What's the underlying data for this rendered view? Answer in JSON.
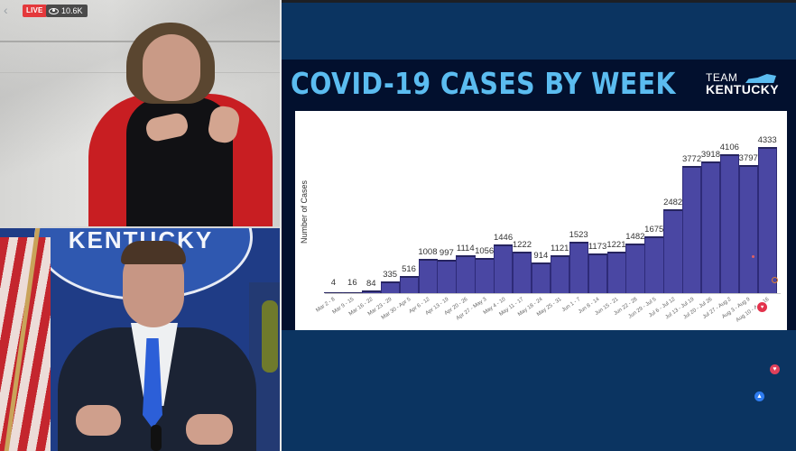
{
  "stream": {
    "live_label": "LIVE",
    "viewers": "10.6K",
    "icons": {
      "viewers": "eye-icon",
      "back": "chevron-left-icon"
    }
  },
  "video_tiles": {
    "interpreter": {
      "description": "ASL interpreter in red cardigan against marble wall"
    },
    "governor": {
      "seal_text": "KENTUCKY",
      "description": "Speaker at podium in front of Kentucky seal and flags"
    }
  },
  "slide": {
    "title": "COVID-19 CASES BY WEEK",
    "brand_top": "TEAM",
    "brand_bottom": "KENTUCKY",
    "colors": {
      "title": "#5bbcf0",
      "background": "#02102e",
      "bar": "#4a47a3"
    }
  },
  "chart_data": {
    "type": "bar",
    "title": "COVID-19 CASES BY WEEK",
    "xlabel": "",
    "ylabel": "Number of Cases",
    "categories": [
      "Mar 2 - 8",
      "Mar 9 - 15",
      "Mar 16 - 22",
      "Mar 23 - 29",
      "Mar 30 - Apr 5",
      "Apr 6 - 12",
      "Apr 13 - 19",
      "Apr 20 - 26",
      "Apr 27 - May 3",
      "May 4 - 10",
      "May 11 - 17",
      "May 18 - 24",
      "May 25 - 31",
      "Jun 1 - 7",
      "Jun 8 - 14",
      "Jun 15 - 21",
      "Jun 22 - 28",
      "Jun 29 - Jul 5",
      "Jul 6 - Jul 12",
      "Jul 13 - Jul 19",
      "Jul 20 - Jul 26",
      "Jul 27 - Aug 2",
      "Aug 3 - Aug 9",
      "Aug 10 - Aug 16"
    ],
    "values": [
      4,
      16,
      84,
      335,
      516,
      1008,
      997,
      1114,
      1056,
      1446,
      1222,
      914,
      1121,
      1523,
      1173,
      1221,
      1482,
      1675,
      2482,
      3772,
      3918,
      4106,
      3797,
      4333
    ],
    "ylim": [
      0,
      4500
    ],
    "grid": false,
    "data_labels": true,
    "legend": "none"
  },
  "reactions": {
    "items": [
      {
        "type": "heart",
        "icon": "heart-icon",
        "color": "#e0405a"
      },
      {
        "type": "like",
        "icon": "thumbs-up-icon",
        "color": "#2f7cf0"
      }
    ]
  }
}
